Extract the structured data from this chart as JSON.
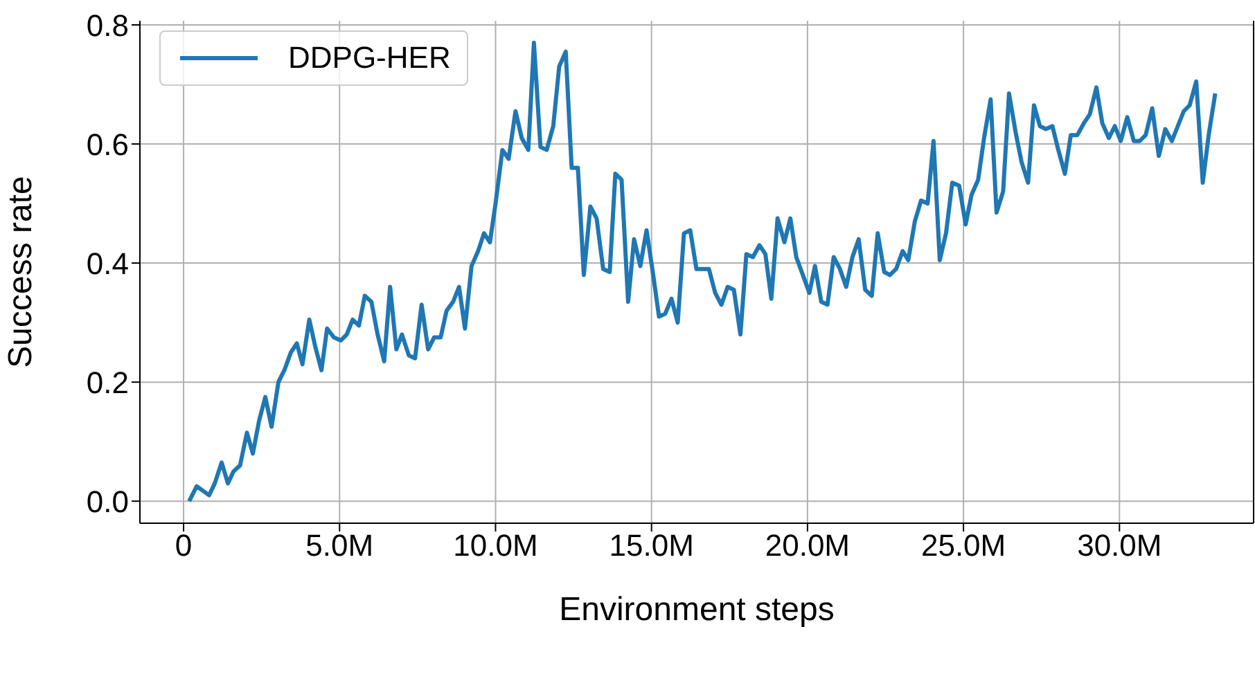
{
  "chart_data": {
    "type": "line",
    "xlabel": "Environment steps",
    "ylabel": "Success rate",
    "xlim": [
      -1.4,
      34.3
    ],
    "ylim": [
      -0.037,
      0.807
    ],
    "xticks": [
      0,
      {
        "value": 5,
        "label": "5.0M"
      },
      {
        "value": 10,
        "label": "10.0M"
      },
      {
        "value": 15,
        "label": "15.0M"
      },
      {
        "value": 20,
        "label": "20.0M"
      },
      {
        "value": 25,
        "label": "25.0M"
      },
      {
        "value": 30,
        "label": "30.0M"
      }
    ],
    "yticks": [
      {
        "value": 0,
        "label": "0.0"
      },
      0.2,
      0.4,
      0.6,
      0.8
    ],
    "grid": true,
    "legend": "top left",
    "marker": "none",
    "line_style": "solid",
    "series": [
      {
        "name": "DDPG-HER",
        "color": "#1f77b4",
        "x": [
          0.18,
          0.42,
          0.82,
          1.0,
          1.22,
          1.42,
          1.6,
          1.81,
          2.03,
          2.22,
          2.42,
          2.62,
          2.82,
          3.04,
          3.23,
          3.44,
          3.63,
          3.81,
          4.03,
          4.22,
          4.42,
          4.6,
          4.82,
          5.04,
          5.23,
          5.42,
          5.62,
          5.81,
          6.02,
          6.22,
          6.43,
          6.62,
          6.82,
          7.0,
          7.22,
          7.42,
          7.63,
          7.84,
          8.03,
          8.24,
          8.43,
          8.64,
          8.83,
          9.02,
          9.23,
          9.44,
          9.63,
          9.82,
          10.0,
          10.22,
          10.42,
          10.64,
          10.84,
          11.05,
          11.23,
          11.44,
          11.64,
          11.85,
          12.04,
          12.25,
          12.44,
          12.64,
          12.83,
          13.04,
          13.24,
          13.45,
          13.66,
          13.84,
          14.04,
          14.25,
          14.44,
          14.64,
          14.84,
          15.04,
          15.24,
          15.44,
          15.64,
          15.84,
          16.04,
          16.24,
          16.44,
          16.65,
          16.84,
          17.04,
          17.24,
          17.44,
          17.64,
          17.85,
          18.04,
          18.25,
          18.46,
          18.65,
          18.84,
          19.04,
          19.26,
          19.45,
          19.64,
          19.85,
          20.06,
          20.24,
          20.44,
          20.64,
          20.84,
          21.04,
          21.24,
          21.44,
          21.64,
          21.85,
          22.06,
          22.25,
          22.46,
          22.64,
          22.84,
          23.05,
          23.23,
          23.44,
          23.64,
          23.85,
          24.04,
          24.24,
          24.44,
          24.64,
          24.86,
          25.07,
          25.26,
          25.47,
          25.66,
          25.87,
          26.06,
          26.27,
          26.46,
          26.67,
          26.86,
          27.07,
          27.26,
          27.45,
          27.64,
          27.85,
          28.04,
          28.25,
          28.44,
          28.65,
          28.86,
          29.05,
          29.26,
          29.45,
          29.66,
          29.85,
          30.04,
          30.25,
          30.46,
          30.65,
          30.84,
          31.05,
          31.26,
          31.47,
          31.68,
          31.87,
          32.06,
          32.25,
          32.46,
          32.67,
          32.86,
          33.07
        ],
        "values": [
          0.0,
          0.025,
          0.01,
          0.03,
          0.065,
          0.03,
          0.05,
          0.06,
          0.115,
          0.08,
          0.135,
          0.175,
          0.125,
          0.2,
          0.22,
          0.25,
          0.265,
          0.23,
          0.305,
          0.26,
          0.22,
          0.29,
          0.275,
          0.27,
          0.28,
          0.305,
          0.295,
          0.345,
          0.335,
          0.28,
          0.235,
          0.36,
          0.255,
          0.28,
          0.245,
          0.24,
          0.33,
          0.255,
          0.275,
          0.275,
          0.32,
          0.335,
          0.36,
          0.29,
          0.395,
          0.42,
          0.45,
          0.435,
          0.5,
          0.59,
          0.575,
          0.655,
          0.61,
          0.59,
          0.77,
          0.595,
          0.59,
          0.63,
          0.73,
          0.755,
          0.56,
          0.56,
          0.38,
          0.495,
          0.475,
          0.39,
          0.385,
          0.55,
          0.54,
          0.335,
          0.44,
          0.395,
          0.455,
          0.385,
          0.31,
          0.315,
          0.34,
          0.3,
          0.45,
          0.455,
          0.39,
          0.39,
          0.39,
          0.35,
          0.33,
          0.36,
          0.355,
          0.28,
          0.415,
          0.41,
          0.43,
          0.415,
          0.34,
          0.475,
          0.435,
          0.475,
          0.41,
          0.38,
          0.35,
          0.395,
          0.335,
          0.33,
          0.41,
          0.39,
          0.36,
          0.41,
          0.44,
          0.355,
          0.345,
          0.45,
          0.385,
          0.38,
          0.39,
          0.42,
          0.405,
          0.47,
          0.505,
          0.5,
          0.605,
          0.405,
          0.45,
          0.535,
          0.53,
          0.465,
          0.515,
          0.54,
          0.61,
          0.675,
          0.485,
          0.52,
          0.685,
          0.62,
          0.57,
          0.535,
          0.665,
          0.63,
          0.625,
          0.63,
          0.59,
          0.55,
          0.615,
          0.615,
          0.635,
          0.65,
          0.695,
          0.635,
          0.61,
          0.63,
          0.605,
          0.645,
          0.605,
          0.605,
          0.615,
          0.66,
          0.58,
          0.625,
          0.605,
          0.63,
          0.655,
          0.665,
          0.705,
          0.535,
          0.615,
          0.685
        ]
      }
    ]
  }
}
